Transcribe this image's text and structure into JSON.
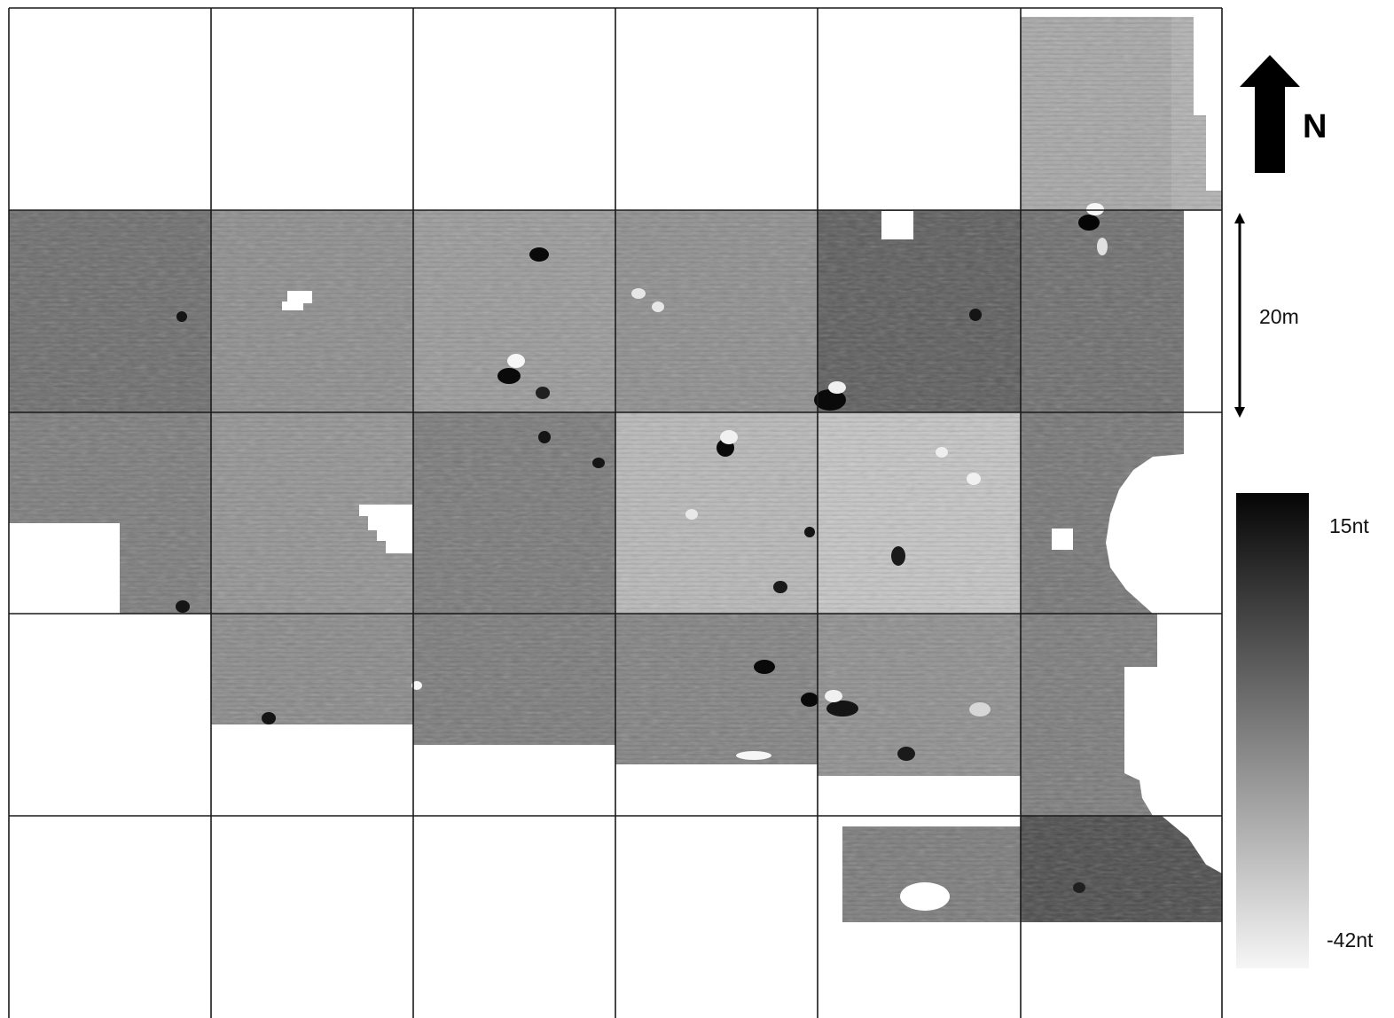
{
  "map": {
    "grid_columns": 6,
    "grid_rows": 5,
    "north_label": "N",
    "scale_label": "20m",
    "scale_length_m": 20,
    "colorbar": {
      "max_label": "15nt",
      "min_label": "-42nt",
      "max_value_nt": 15,
      "min_value_nt": -42,
      "max_color": "#050505",
      "min_color": "#f6f6f6"
    },
    "grid_line_color": "#1a1a1a",
    "background_color": "#ffffff"
  }
}
